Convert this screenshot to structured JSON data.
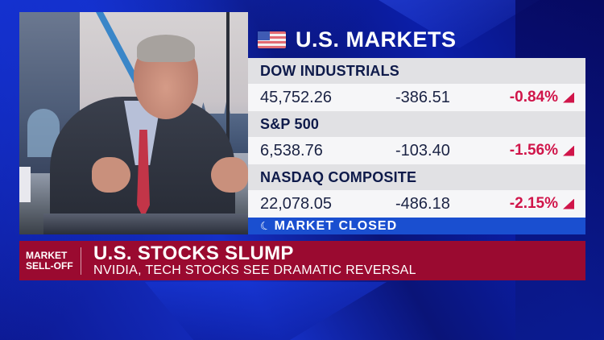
{
  "markets_panel": {
    "title": "U.S. MARKETS",
    "flag_icon": "us-flag-icon",
    "indices": [
      {
        "name": "DOW INDUSTRIALS",
        "price": "45,752.26",
        "change": "-386.51",
        "pct_change": "-0.84%",
        "direction": "down"
      },
      {
        "name": "S&P 500",
        "price": "6,538.76",
        "change": "-103.40",
        "pct_change": "-1.56%",
        "direction": "down"
      },
      {
        "name": "NASDAQ COMPOSITE",
        "price": "22,078.05",
        "change": "-486.18",
        "pct_change": "-2.15%",
        "direction": "down"
      }
    ],
    "status": {
      "icon": "moon-icon",
      "glyph": "☾",
      "label": "MARKET CLOSED"
    }
  },
  "lower_third": {
    "tag": "MARKET\nSELL-OFF",
    "tag_line1": "MARKET",
    "tag_line2": "SELL-OFF",
    "headline": "U.S. STOCKS SLUMP",
    "subheadline": "NVIDIA, TECH STOCKS SEE DRAMATIC REVERSAL"
  },
  "colors": {
    "background_blue": "#0a1a9a",
    "panel_bg": "#f4f4f6",
    "index_header_bg": "#e1e1e4",
    "index_name_text": "#0e1a4a",
    "negative_red": "#d0154a",
    "status_bar_blue": "#1a4fd0",
    "lower_third_red": "#9a0a30"
  }
}
